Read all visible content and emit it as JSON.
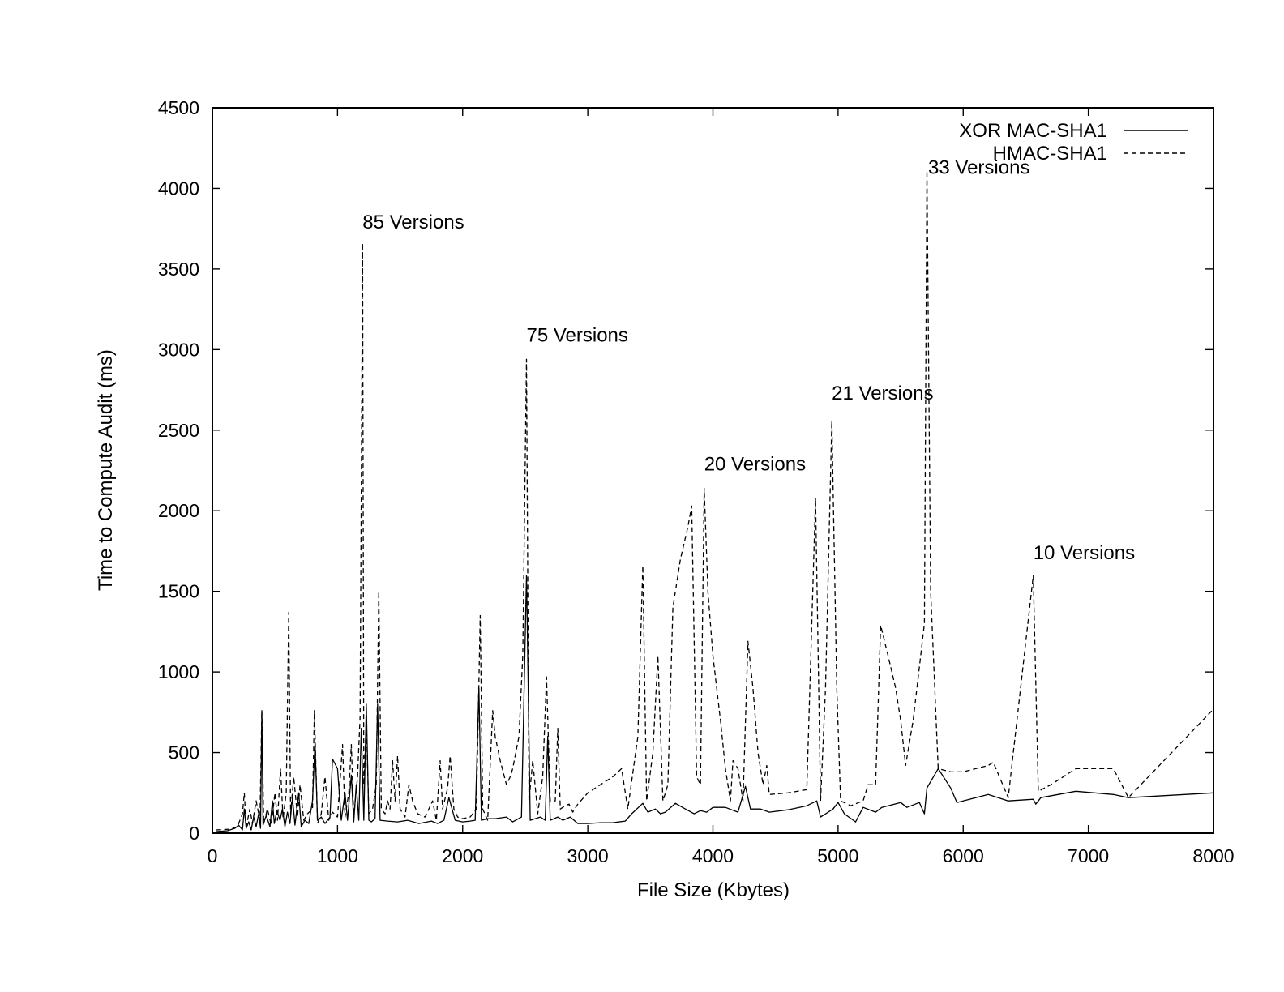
{
  "chart_data": {
    "type": "line",
    "title": "",
    "xlabel": "File Size (Kbytes)",
    "ylabel": "Time to Compute Audit (ms)",
    "xlim": [
      0,
      8000
    ],
    "ylim": [
      0,
      4500
    ],
    "xticks": [
      0,
      1000,
      2000,
      3000,
      4000,
      5000,
      6000,
      7000,
      8000
    ],
    "yticks": [
      0,
      500,
      1000,
      1500,
      2000,
      2500,
      3000,
      3500,
      4000,
      4500
    ],
    "xtick_labels": [
      "0",
      "1000",
      "2000",
      "3000",
      "4000",
      "5000",
      "6000",
      "7000",
      "8000"
    ],
    "ytick_labels": [
      "0",
      "500",
      "1000",
      "1500",
      "2000",
      "2500",
      "3000",
      "3500",
      "4000",
      "4500"
    ],
    "grid": false,
    "legend_position": "top-right",
    "series": [
      {
        "name": "XOR MAC-SHA1",
        "style": "solid",
        "color": "#000000",
        "points": [
          [
            30,
            10
          ],
          [
            120,
            15
          ],
          [
            180,
            30
          ],
          [
            210,
            50
          ],
          [
            240,
            20
          ],
          [
            255,
            150
          ],
          [
            270,
            30
          ],
          [
            290,
            70
          ],
          [
            310,
            20
          ],
          [
            330,
            100
          ],
          [
            350,
            40
          ],
          [
            370,
            120
          ],
          [
            385,
            30
          ],
          [
            395,
            750
          ],
          [
            405,
            50
          ],
          [
            430,
            110
          ],
          [
            460,
            40
          ],
          [
            480,
            200
          ],
          [
            495,
            60
          ],
          [
            515,
            140
          ],
          [
            540,
            80
          ],
          [
            560,
            150
          ],
          [
            580,
            40
          ],
          [
            600,
            130
          ],
          [
            620,
            60
          ],
          [
            640,
            220
          ],
          [
            660,
            50
          ],
          [
            690,
            250
          ],
          [
            710,
            40
          ],
          [
            740,
            80
          ],
          [
            770,
            60
          ],
          [
            800,
            200
          ],
          [
            820,
            560
          ],
          [
            840,
            80
          ],
          [
            870,
            100
          ],
          [
            900,
            60
          ],
          [
            940,
            100
          ],
          [
            960,
            460
          ],
          [
            1000,
            400
          ],
          [
            1030,
            80
          ],
          [
            1060,
            250
          ],
          [
            1080,
            80
          ],
          [
            1110,
            360
          ],
          [
            1130,
            70
          ],
          [
            1150,
            300
          ],
          [
            1170,
            80
          ],
          [
            1190,
            650
          ],
          [
            1210,
            80
          ],
          [
            1230,
            800
          ],
          [
            1250,
            80
          ],
          [
            1270,
            70
          ],
          [
            1300,
            90
          ],
          [
            1320,
            800
          ],
          [
            1340,
            80
          ],
          [
            1400,
            75
          ],
          [
            1480,
            70
          ],
          [
            1560,
            80
          ],
          [
            1650,
            60
          ],
          [
            1750,
            75
          ],
          [
            1800,
            60
          ],
          [
            1850,
            80
          ],
          [
            1890,
            220
          ],
          [
            1940,
            80
          ],
          [
            2000,
            70
          ],
          [
            2060,
            75
          ],
          [
            2100,
            80
          ],
          [
            2130,
            900
          ],
          [
            2150,
            80
          ],
          [
            2200,
            90
          ],
          [
            2260,
            90
          ],
          [
            2350,
            100
          ],
          [
            2400,
            70
          ],
          [
            2470,
            100
          ],
          [
            2510,
            1600
          ],
          [
            2540,
            80
          ],
          [
            2620,
            100
          ],
          [
            2660,
            80
          ],
          [
            2680,
            600
          ],
          [
            2700,
            80
          ],
          [
            2760,
            100
          ],
          [
            2800,
            80
          ],
          [
            2860,
            100
          ],
          [
            2920,
            60
          ],
          [
            3000,
            60
          ],
          [
            3100,
            65
          ],
          [
            3200,
            65
          ],
          [
            3300,
            75
          ],
          [
            3350,
            120
          ],
          [
            3440,
            185
          ],
          [
            3480,
            130
          ],
          [
            3540,
            150
          ],
          [
            3580,
            120
          ],
          [
            3620,
            130
          ],
          [
            3700,
            185
          ],
          [
            3780,
            150
          ],
          [
            3850,
            120
          ],
          [
            3900,
            140
          ],
          [
            3950,
            130
          ],
          [
            4000,
            160
          ],
          [
            4100,
            160
          ],
          [
            4200,
            130
          ],
          [
            4260,
            290
          ],
          [
            4300,
            150
          ],
          [
            4380,
            150
          ],
          [
            4450,
            130
          ],
          [
            4600,
            145
          ],
          [
            4750,
            170
          ],
          [
            4830,
            200
          ],
          [
            4860,
            100
          ],
          [
            4960,
            150
          ],
          [
            5000,
            190
          ],
          [
            5050,
            120
          ],
          [
            5140,
            70
          ],
          [
            5200,
            160
          ],
          [
            5300,
            130
          ],
          [
            5350,
            160
          ],
          [
            5500,
            190
          ],
          [
            5550,
            160
          ],
          [
            5600,
            175
          ],
          [
            5650,
            190
          ],
          [
            5690,
            120
          ],
          [
            5710,
            280
          ],
          [
            5800,
            400
          ],
          [
            5900,
            280
          ],
          [
            5950,
            190
          ],
          [
            6200,
            240
          ],
          [
            6360,
            200
          ],
          [
            6560,
            210
          ],
          [
            6580,
            180
          ],
          [
            6620,
            220
          ],
          [
            6900,
            260
          ],
          [
            7200,
            240
          ],
          [
            7320,
            220
          ],
          [
            8000,
            250
          ]
        ]
      },
      {
        "name": "HMAC-SHA1",
        "style": "dashed",
        "color": "#000000",
        "points": [
          [
            30,
            20
          ],
          [
            150,
            25
          ],
          [
            200,
            40
          ],
          [
            240,
            120
          ],
          [
            255,
            250
          ],
          [
            270,
            40
          ],
          [
            300,
            150
          ],
          [
            320,
            60
          ],
          [
            350,
            200
          ],
          [
            380,
            80
          ],
          [
            395,
            760
          ],
          [
            410,
            60
          ],
          [
            440,
            150
          ],
          [
            470,
            50
          ],
          [
            500,
            250
          ],
          [
            520,
            80
          ],
          [
            545,
            400
          ],
          [
            565,
            90
          ],
          [
            590,
            250
          ],
          [
            610,
            1370
          ],
          [
            625,
            120
          ],
          [
            650,
            350
          ],
          [
            680,
            100
          ],
          [
            700,
            300
          ],
          [
            730,
            80
          ],
          [
            760,
            120
          ],
          [
            800,
            150
          ],
          [
            815,
            760
          ],
          [
            840,
            60
          ],
          [
            870,
            120
          ],
          [
            900,
            350
          ],
          [
            930,
            80
          ],
          [
            960,
            130
          ],
          [
            1000,
            100
          ],
          [
            1040,
            550
          ],
          [
            1060,
            100
          ],
          [
            1090,
            250
          ],
          [
            1110,
            550
          ],
          [
            1130,
            100
          ],
          [
            1160,
            350
          ],
          [
            1180,
            720
          ],
          [
            1200,
            3660
          ],
          [
            1210,
            300
          ],
          [
            1230,
            700
          ],
          [
            1250,
            120
          ],
          [
            1280,
            150
          ],
          [
            1310,
            300
          ],
          [
            1330,
            1500
          ],
          [
            1350,
            150
          ],
          [
            1380,
            120
          ],
          [
            1400,
            200
          ],
          [
            1420,
            150
          ],
          [
            1440,
            450
          ],
          [
            1460,
            200
          ],
          [
            1480,
            480
          ],
          [
            1500,
            150
          ],
          [
            1540,
            100
          ],
          [
            1570,
            300
          ],
          [
            1600,
            200
          ],
          [
            1640,
            120
          ],
          [
            1700,
            100
          ],
          [
            1760,
            200
          ],
          [
            1790,
            80
          ],
          [
            1820,
            450
          ],
          [
            1840,
            150
          ],
          [
            1880,
            280
          ],
          [
            1900,
            480
          ],
          [
            1930,
            150
          ],
          [
            1960,
            100
          ],
          [
            2000,
            90
          ],
          [
            2060,
            100
          ],
          [
            2110,
            150
          ],
          [
            2140,
            1350
          ],
          [
            2160,
            150
          ],
          [
            2200,
            80
          ],
          [
            2240,
            760
          ],
          [
            2260,
            600
          ],
          [
            2300,
            450
          ],
          [
            2350,
            300
          ],
          [
            2380,
            350
          ],
          [
            2400,
            400
          ],
          [
            2450,
            600
          ],
          [
            2480,
            1100
          ],
          [
            2510,
            2940
          ],
          [
            2530,
            200
          ],
          [
            2560,
            450
          ],
          [
            2600,
            120
          ],
          [
            2640,
            350
          ],
          [
            2670,
            970
          ],
          [
            2700,
            200
          ],
          [
            2740,
            200
          ],
          [
            2760,
            650
          ],
          [
            2780,
            150
          ],
          [
            2820,
            170
          ],
          [
            2850,
            180
          ],
          [
            2880,
            130
          ],
          [
            2920,
            180
          ],
          [
            3000,
            250
          ],
          [
            3100,
            300
          ],
          [
            3200,
            350
          ],
          [
            3270,
            400
          ],
          [
            3320,
            150
          ],
          [
            3400,
            600
          ],
          [
            3440,
            1660
          ],
          [
            3470,
            200
          ],
          [
            3520,
            500
          ],
          [
            3560,
            1100
          ],
          [
            3600,
            200
          ],
          [
            3640,
            300
          ],
          [
            3680,
            1400
          ],
          [
            3740,
            1700
          ],
          [
            3800,
            1900
          ],
          [
            3830,
            2030
          ],
          [
            3870,
            350
          ],
          [
            3900,
            300
          ],
          [
            3930,
            2140
          ],
          [
            3960,
            1500
          ],
          [
            4000,
            1100
          ],
          [
            4060,
            700
          ],
          [
            4100,
            400
          ],
          [
            4140,
            200
          ],
          [
            4160,
            450
          ],
          [
            4200,
            400
          ],
          [
            4240,
            200
          ],
          [
            4280,
            1190
          ],
          [
            4320,
            900
          ],
          [
            4360,
            500
          ],
          [
            4400,
            300
          ],
          [
            4430,
            420
          ],
          [
            4450,
            240
          ],
          [
            4600,
            250
          ],
          [
            4750,
            270
          ],
          [
            4820,
            2080
          ],
          [
            4860,
            200
          ],
          [
            4900,
            900
          ],
          [
            4950,
            2560
          ],
          [
            4990,
            900
          ],
          [
            5020,
            200
          ],
          [
            5100,
            170
          ],
          [
            5200,
            200
          ],
          [
            5240,
            300
          ],
          [
            5300,
            300
          ],
          [
            5340,
            1290
          ],
          [
            5400,
            1100
          ],
          [
            5460,
            900
          ],
          [
            5500,
            700
          ],
          [
            5540,
            420
          ],
          [
            5600,
            700
          ],
          [
            5660,
            1100
          ],
          [
            5690,
            1300
          ],
          [
            5710,
            4110
          ],
          [
            5740,
            1500
          ],
          [
            5800,
            400
          ],
          [
            5900,
            380
          ],
          [
            6000,
            380
          ],
          [
            6100,
            400
          ],
          [
            6200,
            420
          ],
          [
            6240,
            440
          ],
          [
            6360,
            220
          ],
          [
            6560,
            1600
          ],
          [
            6600,
            260
          ],
          [
            6700,
            300
          ],
          [
            6800,
            350
          ],
          [
            6900,
            400
          ],
          [
            7100,
            400
          ],
          [
            7200,
            400
          ],
          [
            7320,
            220
          ],
          [
            8000,
            770
          ]
        ]
      }
    ],
    "annotations": [
      {
        "text": "85 Versions",
        "x": 1200,
        "y": 3660
      },
      {
        "text": "75 Versions",
        "x": 2510,
        "y": 2960
      },
      {
        "text": "20 Versions",
        "x": 3930,
        "y": 2160
      },
      {
        "text": "21 Versions",
        "x": 4950,
        "y": 2600
      },
      {
        "text": "33 Versions",
        "x": 5720,
        "y": 4000
      },
      {
        "text": "10 Versions",
        "x": 6560,
        "y": 1610
      }
    ]
  }
}
